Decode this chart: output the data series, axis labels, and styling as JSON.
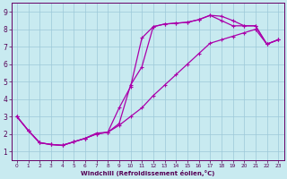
{
  "xlabel": "Windchill (Refroidissement éolien,°C)",
  "bg_color": "#c8eaf0",
  "grid_color": "#9cc8d8",
  "line_color": "#aa00aa",
  "xlim": [
    -0.5,
    23.5
  ],
  "ylim": [
    0.5,
    9.5
  ],
  "xticks": [
    0,
    1,
    2,
    3,
    4,
    5,
    6,
    7,
    8,
    9,
    10,
    11,
    12,
    13,
    14,
    15,
    16,
    17,
    18,
    19,
    20,
    21,
    22,
    23
  ],
  "yticks": [
    1,
    2,
    3,
    4,
    5,
    6,
    7,
    8,
    9
  ],
  "line1_x": [
    0,
    1,
    2,
    3,
    4,
    5,
    6,
    7,
    8,
    9,
    10,
    11,
    12,
    13,
    14,
    15,
    16,
    17,
    18,
    19,
    20,
    21,
    22,
    23
  ],
  "line1_y": [
    3.0,
    2.2,
    1.5,
    1.4,
    1.35,
    1.55,
    1.75,
    2.0,
    2.1,
    3.5,
    4.7,
    7.5,
    8.15,
    8.3,
    8.35,
    8.4,
    8.55,
    8.8,
    8.75,
    8.5,
    8.2,
    8.2,
    7.15,
    7.4
  ],
  "line2_x": [
    0,
    1,
    2,
    3,
    4,
    5,
    6,
    7,
    8,
    9,
    10,
    11,
    12,
    13,
    14,
    15,
    16,
    17,
    18,
    19,
    20,
    21,
    22,
    23
  ],
  "line2_y": [
    3.0,
    2.2,
    1.5,
    1.4,
    1.35,
    1.55,
    1.75,
    2.05,
    2.1,
    2.6,
    4.8,
    5.85,
    8.15,
    8.3,
    8.35,
    8.4,
    8.55,
    8.8,
    8.5,
    8.2,
    8.2,
    8.2,
    7.15,
    7.4
  ],
  "line3_x": [
    0,
    1,
    2,
    3,
    4,
    5,
    6,
    7,
    8,
    9,
    10,
    11,
    12,
    13,
    14,
    15,
    16,
    17,
    18,
    19,
    20,
    21,
    22,
    23
  ],
  "line3_y": [
    3.0,
    2.2,
    1.5,
    1.4,
    1.35,
    1.55,
    1.75,
    2.0,
    2.1,
    2.5,
    3.0,
    3.5,
    4.2,
    4.8,
    5.4,
    6.0,
    6.6,
    7.2,
    7.4,
    7.6,
    7.8,
    8.0,
    7.15,
    7.4
  ]
}
